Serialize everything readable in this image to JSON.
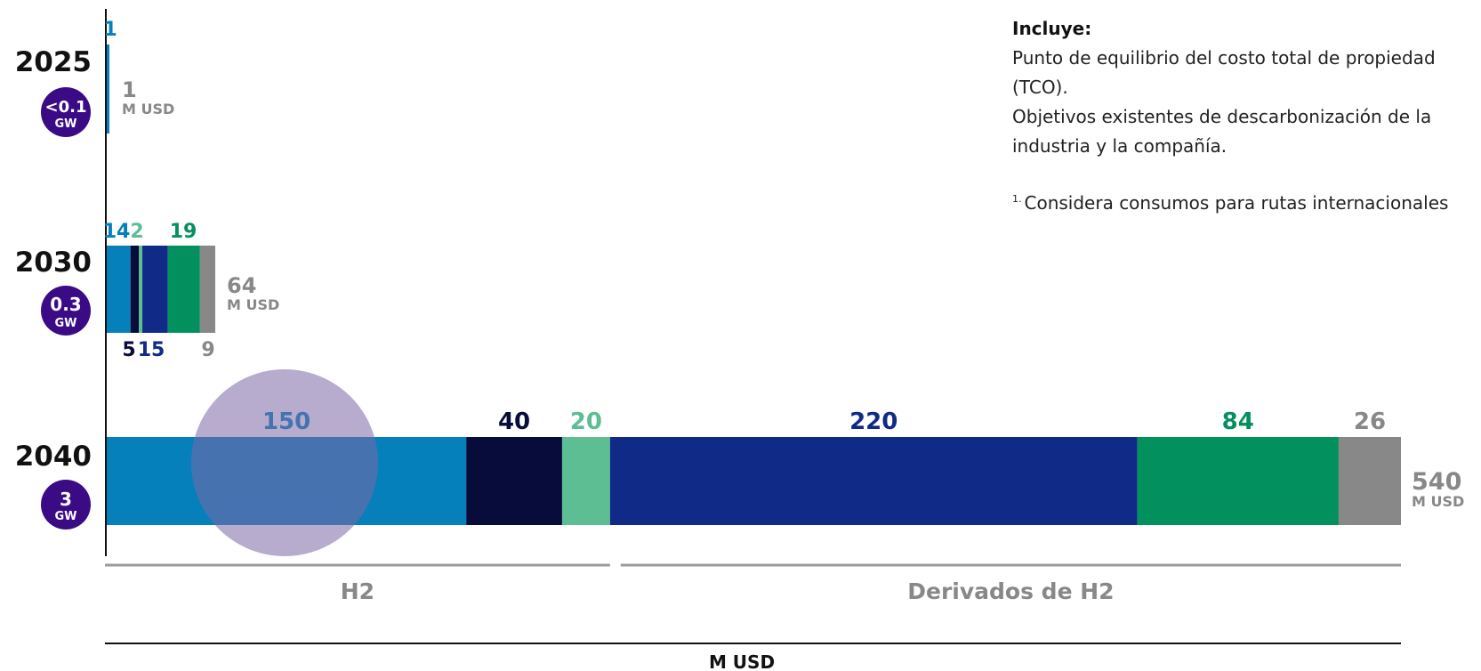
{
  "notes": {
    "heading": "Incluye:",
    "lines": [
      "Punto de equilibrio del costo total de propiedad (TCO).",
      "Objetivos existentes de descarbonización de la industria y la compañía."
    ],
    "footnote_marker": "1.",
    "footnote": "Considera consumos para rutas internacionales"
  },
  "chart_data": {
    "type": "bar",
    "orientation": "horizontal",
    "stacked": true,
    "xlabel": "M USD",
    "colors": [
      "#0580bb",
      "#070c3a",
      "#5dbd93",
      "#0f2a87",
      "#02915e",
      "#888888"
    ],
    "groups": [
      {
        "label": "H2",
        "segments": [
          0,
          1,
          2
        ]
      },
      {
        "label": "Derivados de H2",
        "segments": [
          3,
          4,
          5
        ]
      }
    ],
    "rows": [
      {
        "year": "2025",
        "capacity": "<0.1",
        "capacity_unit": "GW",
        "values": [
          1,
          0,
          0,
          0,
          0,
          0
        ],
        "segment_labels": [
          "1"
        ],
        "total": "1",
        "total_unit": "M USD"
      },
      {
        "year": "2030",
        "capacity": "0.3",
        "capacity_unit": "GW",
        "values": [
          14,
          5,
          2,
          15,
          19,
          9
        ],
        "segment_labels": [
          "14",
          "5",
          "2",
          "15",
          "19",
          "9"
        ],
        "total": "64",
        "total_unit": "M USD"
      },
      {
        "year": "2040",
        "capacity": "3",
        "capacity_unit": "GW",
        "values": [
          150,
          40,
          20,
          220,
          84,
          26
        ],
        "segment_labels": [
          "150",
          "40",
          "20",
          "220",
          "84",
          "26"
        ],
        "total": "540",
        "total_unit": "M USD"
      }
    ]
  }
}
